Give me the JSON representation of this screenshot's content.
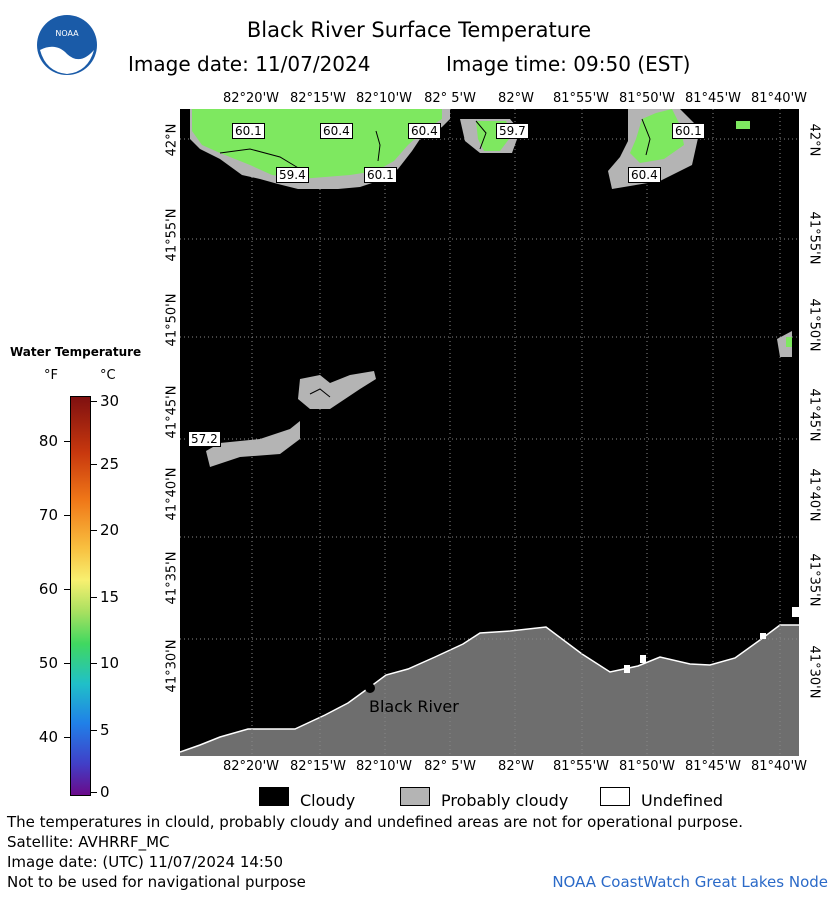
{
  "title": "Black River Surface Temperature",
  "image_date_line": "Image date: 11/07/2024",
  "image_time_line": "Image time: 09:50 (EST)",
  "logo_text": "NOAA",
  "longitude_labels": [
    "82°20'W",
    "82°15'W",
    "82°10'W",
    "82° 5'W",
    "82°W",
    "81°55'W",
    "81°50'W",
    "81°45'W",
    "81°40'W"
  ],
  "latitude_labels": [
    "42°N",
    "41°55'N",
    "41°50'N",
    "41°45'N",
    "41°40'N",
    "41°35'N",
    "41°30'N"
  ],
  "temperature_labels": [
    "60.1",
    "60.4",
    "60.4",
    "59.7",
    "60.1",
    "59.4",
    "60.1",
    "60.4",
    "57.2"
  ],
  "station": {
    "name": "Black River"
  },
  "legend": {
    "title": "Water Temperature",
    "unit_f": "°F",
    "unit_c": "°C",
    "f_ticks": [
      "80",
      "70",
      "60",
      "50",
      "40"
    ],
    "c_ticks": [
      "30",
      "25",
      "20",
      "15",
      "10",
      "5",
      "0"
    ]
  },
  "key": {
    "cloudy": "Cloudy",
    "probably_cloudy": "Probably cloudy",
    "undefined": "Undefined"
  },
  "colors": {
    "land": "#6e6e6e",
    "cloud": "#000000",
    "probably_cloud": "#b4b4b4",
    "water_warm": "#7ee860",
    "credit": "#2b6ac8"
  },
  "footer": {
    "disclaimer": "The temperatures in clould, probably cloudy and undefined areas are not for operational purpose.",
    "satellite": "Satellite: AVHRRF_MC",
    "utc_date": "Image date: (UTC) 11/07/2024  14:50",
    "nav_warning": "Not to be used for navigational purpose",
    "credit": "NOAA CoastWatch Great Lakes Node"
  }
}
